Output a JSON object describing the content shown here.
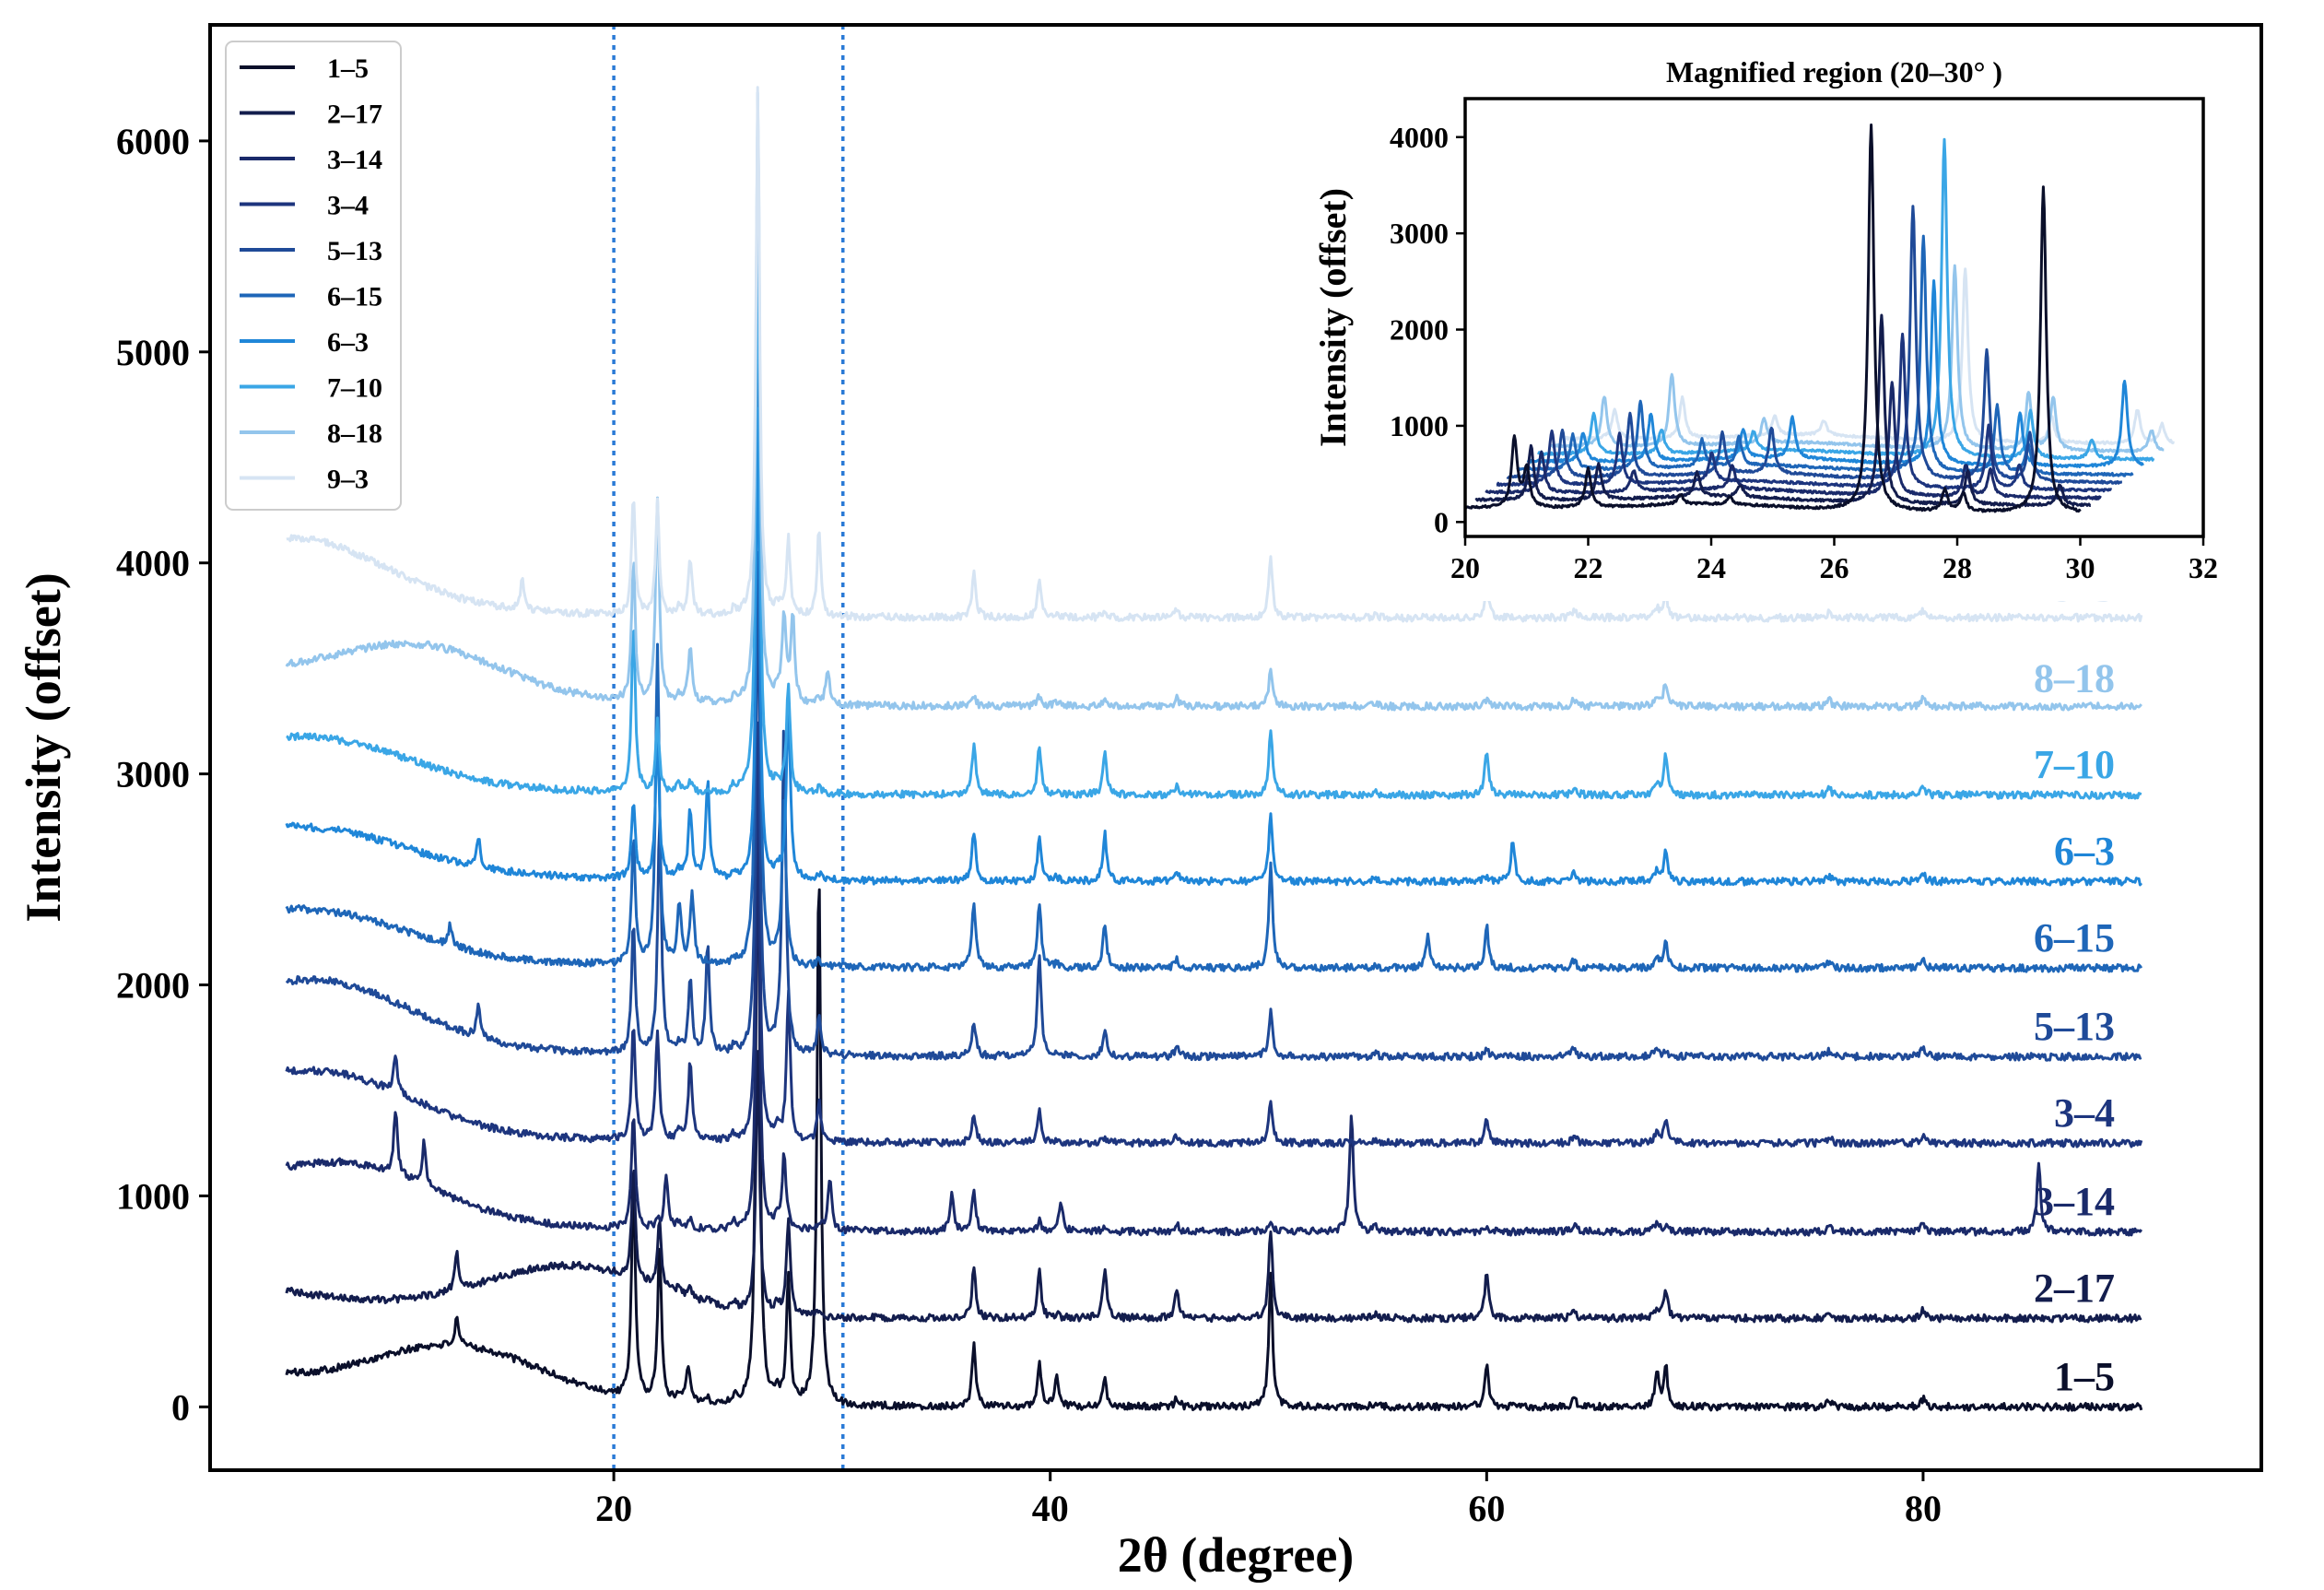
{
  "chart_data": [
    {
      "type": "line",
      "role": "main",
      "title": "",
      "xlabel": "2θ (degree)",
      "ylabel": "Intensity (offset)",
      "xlim": [
        1.5,
        95.5
      ],
      "ylim": [
        -300,
        6550
      ],
      "xticks": [
        20,
        40,
        60,
        80
      ],
      "yticks": [
        0,
        1000,
        2000,
        3000,
        4000,
        5000,
        6000
      ],
      "x_range": [
        5,
        90
      ],
      "reference_lines": [
        20,
        30.5
      ],
      "reference_line_color": "#2a7ad6",
      "legend_position": "top-left",
      "common_peaks": [
        20.9,
        22.0,
        23.0,
        23.5,
        24.3,
        25.5,
        26.6,
        27.5,
        28.0,
        29.4,
        36.5,
        39.5,
        40.3,
        42.5,
        45.8,
        50.1,
        54.9,
        60.0,
        64.0,
        67.8,
        68.2,
        75.7,
        80.0
      ],
      "series": [
        {
          "name": "1–5",
          "offset": 0,
          "color": "#0a0f2a",
          "label_y": 80,
          "bump_x": 12.8,
          "bump_amp": 250,
          "peaks": [
            [
              12.8,
              120
            ],
            [
              20.9,
              1050
            ],
            [
              22.1,
              720
            ],
            [
              23.4,
              150
            ],
            [
              26.6,
              2950
            ],
            [
              28.0,
              600
            ],
            [
              29.4,
              2550
            ],
            [
              36.5,
              250
            ],
            [
              39.5,
              160
            ],
            [
              40.3,
              120
            ],
            [
              42.5,
              100
            ],
            [
              50.1,
              580
            ],
            [
              60.0,
              170
            ],
            [
              67.8,
              120
            ],
            [
              68.2,
              180
            ]
          ]
        },
        {
          "name": "2–17",
          "offset": 420,
          "color": "#131d4d",
          "label_y": 500,
          "bump_x": 18.0,
          "bump_amp": 230,
          "peaks": [
            [
              12.8,
              180
            ],
            [
              20.9,
              500
            ],
            [
              22.1,
              300
            ],
            [
              26.6,
              1200
            ],
            [
              28.0,
              450
            ],
            [
              36.5,
              200
            ],
            [
              39.5,
              170
            ],
            [
              42.5,
              200
            ],
            [
              45.8,
              90
            ],
            [
              50.1,
              380
            ],
            [
              60.0,
              200
            ],
            [
              68.2,
              130
            ]
          ]
        },
        {
          "name": "3–14",
          "offset": 830,
          "color": "#1a2a6a",
          "label_y": 910,
          "bump_x": 8.0,
          "bump_amp": 240,
          "peaks": [
            [
              10.0,
              300
            ],
            [
              11.3,
              200
            ],
            [
              20.9,
              540
            ],
            [
              22.4,
              260
            ],
            [
              26.6,
              1850
            ],
            [
              27.8,
              340
            ],
            [
              29.9,
              260
            ],
            [
              35.5,
              180
            ],
            [
              36.5,
              150
            ],
            [
              40.5,
              120
            ],
            [
              53.8,
              570
            ],
            [
              85.3,
              320
            ]
          ]
        },
        {
          "name": "3–4",
          "offset": 1250,
          "color": "#1d357e",
          "label_y": 1330,
          "bump_x": 7.0,
          "bump_amp": 240,
          "peaks": [
            [
              10.0,
              180
            ],
            [
              20.9,
              540
            ],
            [
              22.0,
              480
            ],
            [
              23.5,
              320
            ],
            [
              26.6,
              1950
            ],
            [
              28.0,
              680
            ],
            [
              29.4,
              160
            ],
            [
              36.5,
              90
            ],
            [
              39.5,
              100
            ],
            [
              50.1,
              150
            ],
            [
              60.0,
              80
            ],
            [
              68.2,
              90
            ]
          ]
        },
        {
          "name": "5–13",
          "offset": 1660,
          "color": "#1f4a98",
          "label_y": 1740,
          "bump_x": 7.0,
          "bump_amp": 260,
          "peaks": [
            [
              13.8,
              150
            ],
            [
              20.9,
              600
            ],
            [
              22.1,
              1100
            ],
            [
              23.5,
              300
            ],
            [
              24.3,
              500
            ],
            [
              26.6,
              2350
            ],
            [
              27.8,
              1550
            ],
            [
              29.4,
              150
            ],
            [
              36.5,
              120
            ],
            [
              39.5,
              450
            ],
            [
              42.5,
              100
            ],
            [
              50.1,
              170
            ]
          ]
        },
        {
          "name": "6–15",
          "offset": 2080,
          "color": "#1e66b8",
          "label_y": 2160,
          "bump_x": 7.0,
          "bump_amp": 170,
          "peaks": [
            [
              12.5,
              100
            ],
            [
              20.9,
              600
            ],
            [
              22.0,
              1500
            ],
            [
              23.0,
              250
            ],
            [
              23.6,
              300
            ],
            [
              26.6,
              2900
            ],
            [
              27.8,
              800
            ],
            [
              36.5,
              280
            ],
            [
              39.5,
              250
            ],
            [
              42.5,
              180
            ],
            [
              50.1,
              450
            ],
            [
              57.3,
              150
            ],
            [
              60.0,
              170
            ],
            [
              68.2,
              120
            ]
          ]
        },
        {
          "name": "6–3",
          "offset": 2490,
          "color": "#1f86d8",
          "label_y": 2570,
          "bump_x": 7.0,
          "bump_amp": 150,
          "peaks": [
            [
              13.8,
              150
            ],
            [
              20.9,
              350
            ],
            [
              22.0,
              650
            ],
            [
              23.5,
              280
            ],
            [
              24.3,
              450
            ],
            [
              26.6,
              2200
            ],
            [
              28.0,
              850
            ],
            [
              36.5,
              200
            ],
            [
              39.5,
              150
            ],
            [
              42.5,
              200
            ],
            [
              50.1,
              270
            ],
            [
              61.2,
              200
            ],
            [
              68.2,
              120
            ]
          ]
        },
        {
          "name": "7–10",
          "offset": 2900,
          "color": "#3aa6e6",
          "label_y": 2980,
          "bump_x": 7.0,
          "bump_amp": 170,
          "peaks": [
            [
              20.9,
              800
            ],
            [
              22.0,
              300
            ],
            [
              26.6,
              2800
            ],
            [
              28.0,
              500
            ],
            [
              36.5,
              200
            ],
            [
              39.5,
              180
            ],
            [
              42.5,
              170
            ],
            [
              50.1,
              260
            ],
            [
              60.0,
              190
            ],
            [
              68.2,
              170
            ]
          ]
        },
        {
          "name": "8–18",
          "offset": 3320,
          "color": "#93c5ec",
          "label_y": 3390,
          "bump_x": 11.0,
          "bump_amp": 240,
          "peaks": [
            [
              20.9,
              650
            ],
            [
              22.0,
              950
            ],
            [
              23.5,
              230
            ],
            [
              26.6,
              2880
            ],
            [
              27.8,
              420
            ],
            [
              28.2,
              420
            ],
            [
              29.8,
              170
            ],
            [
              50.1,
              120
            ],
            [
              68.2,
              100
            ]
          ]
        },
        {
          "name": "9–3",
          "offset": 3740,
          "color": "#d6e4f3",
          "label_y": 3820,
          "bump_x": 6.0,
          "bump_amp": 260,
          "peaks": [
            [
              15.8,
              140
            ],
            [
              20.9,
              550
            ],
            [
              22.0,
              500
            ],
            [
              23.5,
              220
            ],
            [
              26.6,
              2480
            ],
            [
              28.0,
              360
            ],
            [
              29.4,
              380
            ],
            [
              36.5,
              180
            ],
            [
              39.5,
              120
            ],
            [
              50.1,
              240
            ],
            [
              60.0,
              120
            ],
            [
              68.2,
              100
            ]
          ]
        }
      ]
    },
    {
      "type": "line",
      "role": "inset",
      "title": "Magnified region (20–30°  )",
      "xlabel": "",
      "ylabel": "Intensity (offset)",
      "xlim": [
        20,
        32
      ],
      "ylim": [
        -150,
        4400
      ],
      "xticks": [
        20,
        22,
        24,
        26,
        28,
        30,
        32
      ],
      "yticks": [
        0,
        1000,
        2000,
        3000,
        4000
      ],
      "x_range_first": [
        20,
        30
      ],
      "series_x_shift": 0.17,
      "series_y_step": 80,
      "series_peaks": [
        [
          [
            20.8,
            720
          ],
          [
            21.0,
            400
          ],
          [
            22.0,
            400
          ],
          [
            23.5,
            100
          ],
          [
            24.3,
            80
          ],
          [
            26.6,
            4020
          ],
          [
            27.8,
            220
          ],
          [
            28.1,
            180
          ],
          [
            29.4,
            3380
          ]
        ],
        [
          [
            20.9,
            560
          ],
          [
            22.0,
            370
          ],
          [
            23.6,
            250
          ],
          [
            24.3,
            120
          ],
          [
            26.6,
            1950
          ],
          [
            28.0,
            350
          ],
          [
            29.5,
            220
          ]
        ],
        [
          [
            20.9,
            420
          ],
          [
            22.4,
            220
          ],
          [
            24.0,
            250
          ],
          [
            26.6,
            1180
          ],
          [
            27.8,
            330
          ],
          [
            28.2,
            280
          ]
        ],
        [
          [
            20.9,
            560
          ],
          [
            22.0,
            520
          ],
          [
            23.5,
            300
          ],
          [
            26.6,
            1600
          ],
          [
            28.0,
            650
          ],
          [
            28.5,
            250
          ]
        ],
        [
          [
            20.9,
            480
          ],
          [
            22.0,
            650
          ],
          [
            23.5,
            420
          ],
          [
            24.3,
            480
          ],
          [
            26.6,
            2850
          ],
          [
            27.8,
            1350
          ],
          [
            28.5,
            500
          ]
        ],
        [
          [
            20.9,
            360
          ],
          [
            22.0,
            700
          ],
          [
            23.0,
            280
          ],
          [
            23.6,
            300
          ],
          [
            26.6,
            2450
          ],
          [
            27.8,
            700
          ],
          [
            28.3,
            300
          ]
        ],
        [
          [
            20.9,
            300
          ],
          [
            22.0,
            500
          ],
          [
            23.5,
            300
          ],
          [
            24.3,
            420
          ],
          [
            26.6,
            1900
          ],
          [
            28.0,
            550
          ],
          [
            29.7,
            900
          ]
        ],
        [
          [
            20.9,
            420
          ],
          [
            22.0,
            250
          ],
          [
            23.5,
            200
          ],
          [
            26.6,
            3300
          ],
          [
            28.0,
            500
          ],
          [
            29.0,
            200
          ]
        ],
        [
          [
            20.9,
            520
          ],
          [
            22.0,
            750
          ],
          [
            23.5,
            250
          ],
          [
            26.6,
            1900
          ],
          [
            27.8,
            600
          ],
          [
            28.2,
            550
          ],
          [
            29.8,
            220
          ]
        ],
        [
          [
            20.9,
            300
          ],
          [
            22.0,
            420
          ],
          [
            23.5,
            200
          ],
          [
            24.3,
            150
          ],
          [
            26.6,
            1800
          ],
          [
            28.0,
            280
          ],
          [
            29.4,
            350
          ],
          [
            29.8,
            200
          ]
        ]
      ]
    }
  ]
}
